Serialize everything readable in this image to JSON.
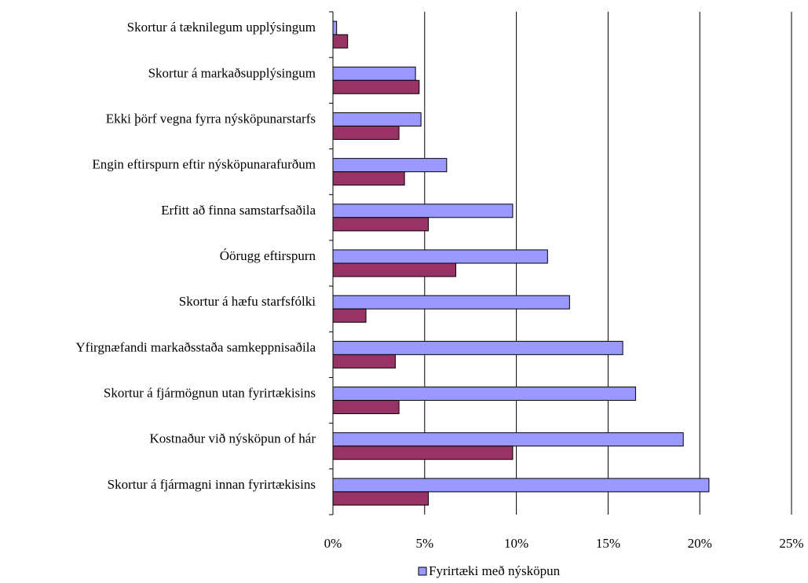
{
  "chart_data": {
    "type": "bar",
    "orientation": "horizontal",
    "categories": [
      "Skortur á tæknilegum upplýsingum",
      "Skortur á markaðsupplýsingum",
      "Ekki þörf vegna fyrra nýsköpunarstarfs",
      "Engin eftirspurn eftir nýsköpunarafurðum",
      "Erfitt að finna samstarfsaðila",
      "Óörugg eftirspurn",
      "Skortur á hæfu starfsfólki",
      "Yfirgnæfandi markaðsstaða samkeppnisaðila",
      "Skortur á fjármögnun utan fyrirtækisins",
      "Kostnaður við nýsköpun of hár",
      "Skortur á fjármagni innan fyrirtækisins"
    ],
    "series": [
      {
        "name": "Fyrirtæki með nýsköpun",
        "color": "#9999ff",
        "values": [
          0.2,
          4.5,
          4.8,
          6.2,
          9.8,
          11.7,
          12.9,
          15.8,
          16.5,
          19.1,
          20.5
        ]
      },
      {
        "name": "",
        "color": "#993366",
        "values": [
          0.8,
          4.7,
          3.6,
          3.9,
          5.2,
          6.7,
          1.8,
          3.4,
          3.6,
          9.8,
          5.2
        ]
      }
    ],
    "xlim": [
      0,
      25
    ],
    "xticks": [
      0,
      5,
      10,
      15,
      20,
      25
    ],
    "tick_suffix": "%",
    "grid": "vertical",
    "legend": "bottom"
  }
}
